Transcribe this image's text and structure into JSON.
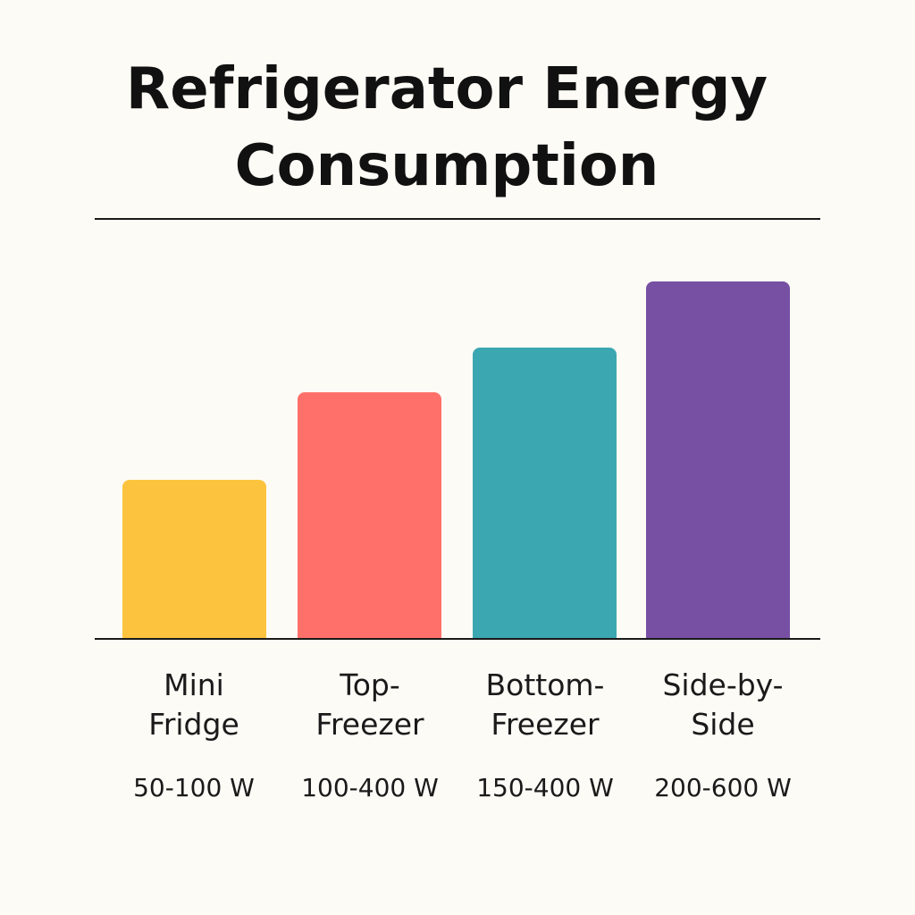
{
  "chart_data": {
    "type": "bar",
    "title_lines": [
      "Refrigerator Energy",
      "Consumption"
    ],
    "categories": [
      [
        "Mini",
        "Fridge"
      ],
      [
        "Top-",
        "Freezer"
      ],
      [
        "Bottom-",
        "Freezer"
      ],
      [
        "Side-by-",
        "Side"
      ]
    ],
    "range_labels": [
      "50-100 W",
      "100-400 W",
      "150-400 W",
      "200-600 W"
    ],
    "values": [
      178,
      276,
      326,
      400
    ],
    "ylim": [
      0,
      400
    ],
    "colors": [
      "#fcc43e",
      "#fe7069",
      "#3ba7b1",
      "#7750a3"
    ],
    "grid": false,
    "legend": "none"
  }
}
